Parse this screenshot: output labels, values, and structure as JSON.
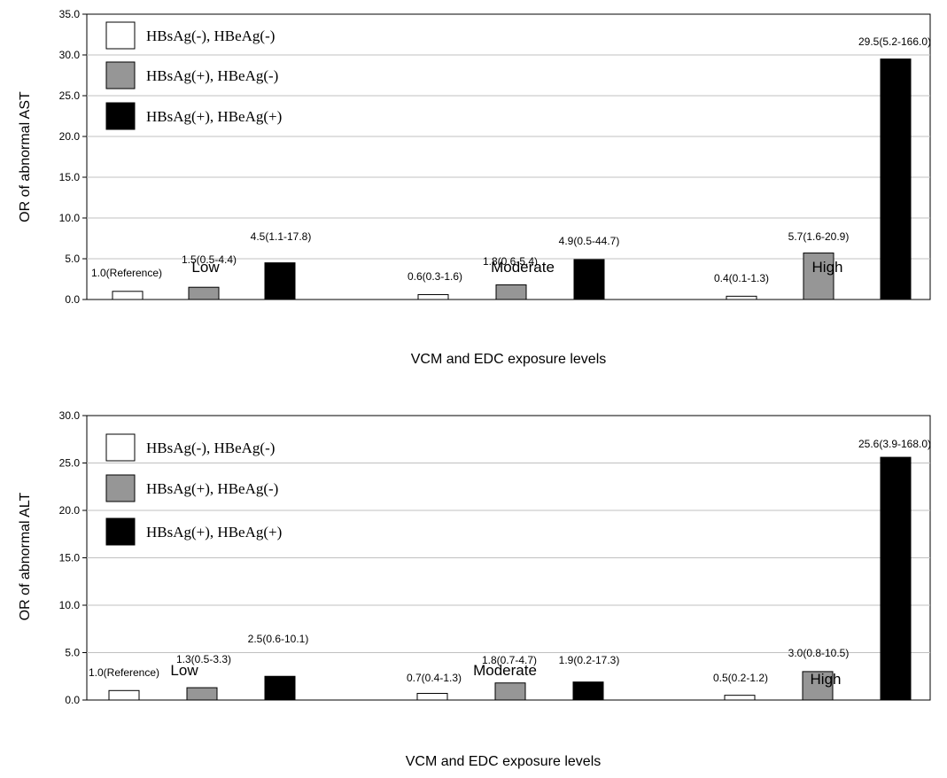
{
  "colors": {
    "series": [
      "#ffffff",
      "#969696",
      "#000000"
    ],
    "gridline": "#c0c0c0",
    "axis": "#000000",
    "border": "#000000"
  },
  "legend_entries": [
    "HBsAg(-), HBeAg(-)",
    "HBsAg(+), HBeAg(-)",
    "HBsAg(+), HBeAg(+)"
  ],
  "chart_data": [
    {
      "type": "bar",
      "title": "",
      "xlabel": "VCM and EDC exposure levels",
      "ylabel": "OR of abnormal AST",
      "ylim": [
        0,
        35
      ],
      "yticks": [
        "0.0",
        "5.0",
        "10.0",
        "15.0",
        "20.0",
        "25.0",
        "30.0",
        "35.0"
      ],
      "grid": true,
      "legend_position": "top-left",
      "categories": [
        "Low",
        "Moderate",
        "High"
      ],
      "series": [
        {
          "name": "HBsAg(-), HBeAg(-)",
          "values": [
            1.0,
            0.6,
            0.4
          ],
          "labels": [
            "1.0(Reference)",
            "0.6(0.3-1.6)",
            "0.4(0.1-1.3)"
          ]
        },
        {
          "name": "HBsAg(+), HBeAg(-)",
          "values": [
            1.5,
            1.8,
            5.7
          ],
          "labels": [
            "1.5(0.5-4.4)",
            "1.8(0.6-5.4)",
            "5.7(1.6-20.9)"
          ]
        },
        {
          "name": "HBsAg(+), HBeAg(+)",
          "values": [
            4.5,
            4.9,
            29.5
          ],
          "labels": [
            "4.5(1.1-17.8)",
            "4.9(0.5-44.7)",
            "29.5(5.2-166.0)"
          ]
        }
      ]
    },
    {
      "type": "bar",
      "title": "",
      "xlabel": "VCM and EDC exposure levels",
      "ylabel": "OR of abnormal ALT",
      "ylim": [
        0,
        30
      ],
      "yticks": [
        "0.0",
        "5.0",
        "10.0",
        "15.0",
        "20.0",
        "25.0",
        "30.0"
      ],
      "grid": true,
      "legend_position": "top-left",
      "categories": [
        "Low",
        "Moderate",
        "High"
      ],
      "series": [
        {
          "name": "HBsAg(-), HBeAg(-)",
          "values": [
            1.0,
            0.7,
            0.5
          ],
          "labels": [
            "1.0(Reference)",
            "0.7(0.4-1.3)",
            "0.5(0.2-1.2)"
          ]
        },
        {
          "name": "HBsAg(+), HBeAg(-)",
          "values": [
            1.3,
            1.8,
            3.0
          ],
          "labels": [
            "1.3(0.5-3.3)",
            "1.8(0.7-4.7)",
            "3.0(0.8-10.5)"
          ]
        },
        {
          "name": "HBsAg(+), HBeAg(+)",
          "values": [
            2.5,
            1.9,
            25.6
          ],
          "labels": [
            "2.5(0.6-10.1)",
            "1.9(0.2-17.3)",
            "25.6(3.9-168.0)"
          ]
        }
      ]
    }
  ]
}
